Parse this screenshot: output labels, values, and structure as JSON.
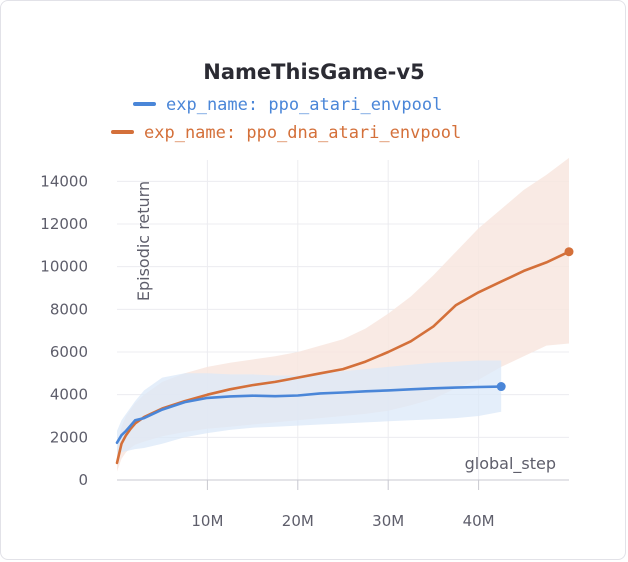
{
  "chart_data": {
    "type": "line",
    "title": "NameThisGame-v5",
    "xlabel": "global_step",
    "ylabel": "Episodic return",
    "xlim": [
      0,
      50000000
    ],
    "ylim": [
      0,
      15000
    ],
    "x_ticks": [
      10000000,
      20000000,
      30000000,
      40000000
    ],
    "x_tick_labels": [
      "10M",
      "20M",
      "30M",
      "40M"
    ],
    "y_ticks": [
      0,
      2000,
      4000,
      6000,
      8000,
      10000,
      12000,
      14000
    ],
    "y_tick_labels": [
      "0",
      "2000",
      "4000",
      "6000",
      "8000",
      "10000",
      "12000",
      "14000"
    ],
    "grid": true,
    "legend_position": "top",
    "series": [
      {
        "name": "exp_name: ppo_atari_envpool",
        "color": "#4a86d8",
        "band_color": "#dbe8f8",
        "x": [
          0,
          500000,
          1000000,
          1500000,
          2000000,
          3000000,
          5000000,
          7500000,
          10000000,
          12500000,
          15000000,
          17500000,
          20000000,
          22500000,
          25000000,
          27500000,
          30000000,
          32500000,
          35000000,
          37500000,
          40000000,
          42500000
        ],
        "values": [
          1750,
          2100,
          2300,
          2550,
          2800,
          2900,
          3300,
          3650,
          3850,
          3920,
          3950,
          3930,
          3960,
          4060,
          4100,
          4160,
          4200,
          4250,
          4300,
          4330,
          4360,
          4380
        ],
        "lower": [
          1200,
          1300,
          1350,
          1400,
          1450,
          1500,
          1700,
          2000,
          2200,
          2350,
          2450,
          2500,
          2550,
          2600,
          2650,
          2700,
          2750,
          2800,
          2850,
          2900,
          3000,
          3200
        ],
        "upper": [
          2300,
          2800,
          3100,
          3400,
          3700,
          4200,
          4800,
          5000,
          5000,
          4950,
          4950,
          4900,
          4900,
          5000,
          5100,
          5200,
          5300,
          5400,
          5500,
          5550,
          5600,
          5600
        ]
      },
      {
        "name": "exp_name: ppo_dna_atari_envpool",
        "color": "#d4703a",
        "band_color": "#f8e6df",
        "x": [
          0,
          500000,
          1000000,
          1500000,
          2000000,
          3000000,
          5000000,
          7500000,
          10000000,
          12500000,
          15000000,
          17500000,
          20000000,
          22500000,
          25000000,
          27500000,
          30000000,
          32500000,
          35000000,
          37500000,
          40000000,
          42500000,
          45000000,
          47500000,
          50000000
        ],
        "values": [
          800,
          1700,
          2100,
          2400,
          2650,
          2950,
          3350,
          3700,
          4000,
          4250,
          4450,
          4600,
          4800,
          5000,
          5200,
          5550,
          6000,
          6500,
          7200,
          8200,
          8800,
          9300,
          9800,
          10200,
          10700
        ],
        "lower": [
          400,
          1000,
          1300,
          1500,
          1650,
          1800,
          2050,
          2250,
          2400,
          2500,
          2600,
          2700,
          2800,
          2900,
          3000,
          3100,
          3250,
          3500,
          3800,
          4300,
          4700,
          5300,
          5800,
          6300,
          6400
        ],
        "upper": [
          1400,
          2500,
          3000,
          3300,
          3600,
          4000,
          4600,
          5000,
          5300,
          5500,
          5650,
          5800,
          6000,
          6300,
          6600,
          7100,
          7800,
          8600,
          9600,
          10700,
          11800,
          12700,
          13600,
          14300,
          15100
        ]
      }
    ]
  }
}
